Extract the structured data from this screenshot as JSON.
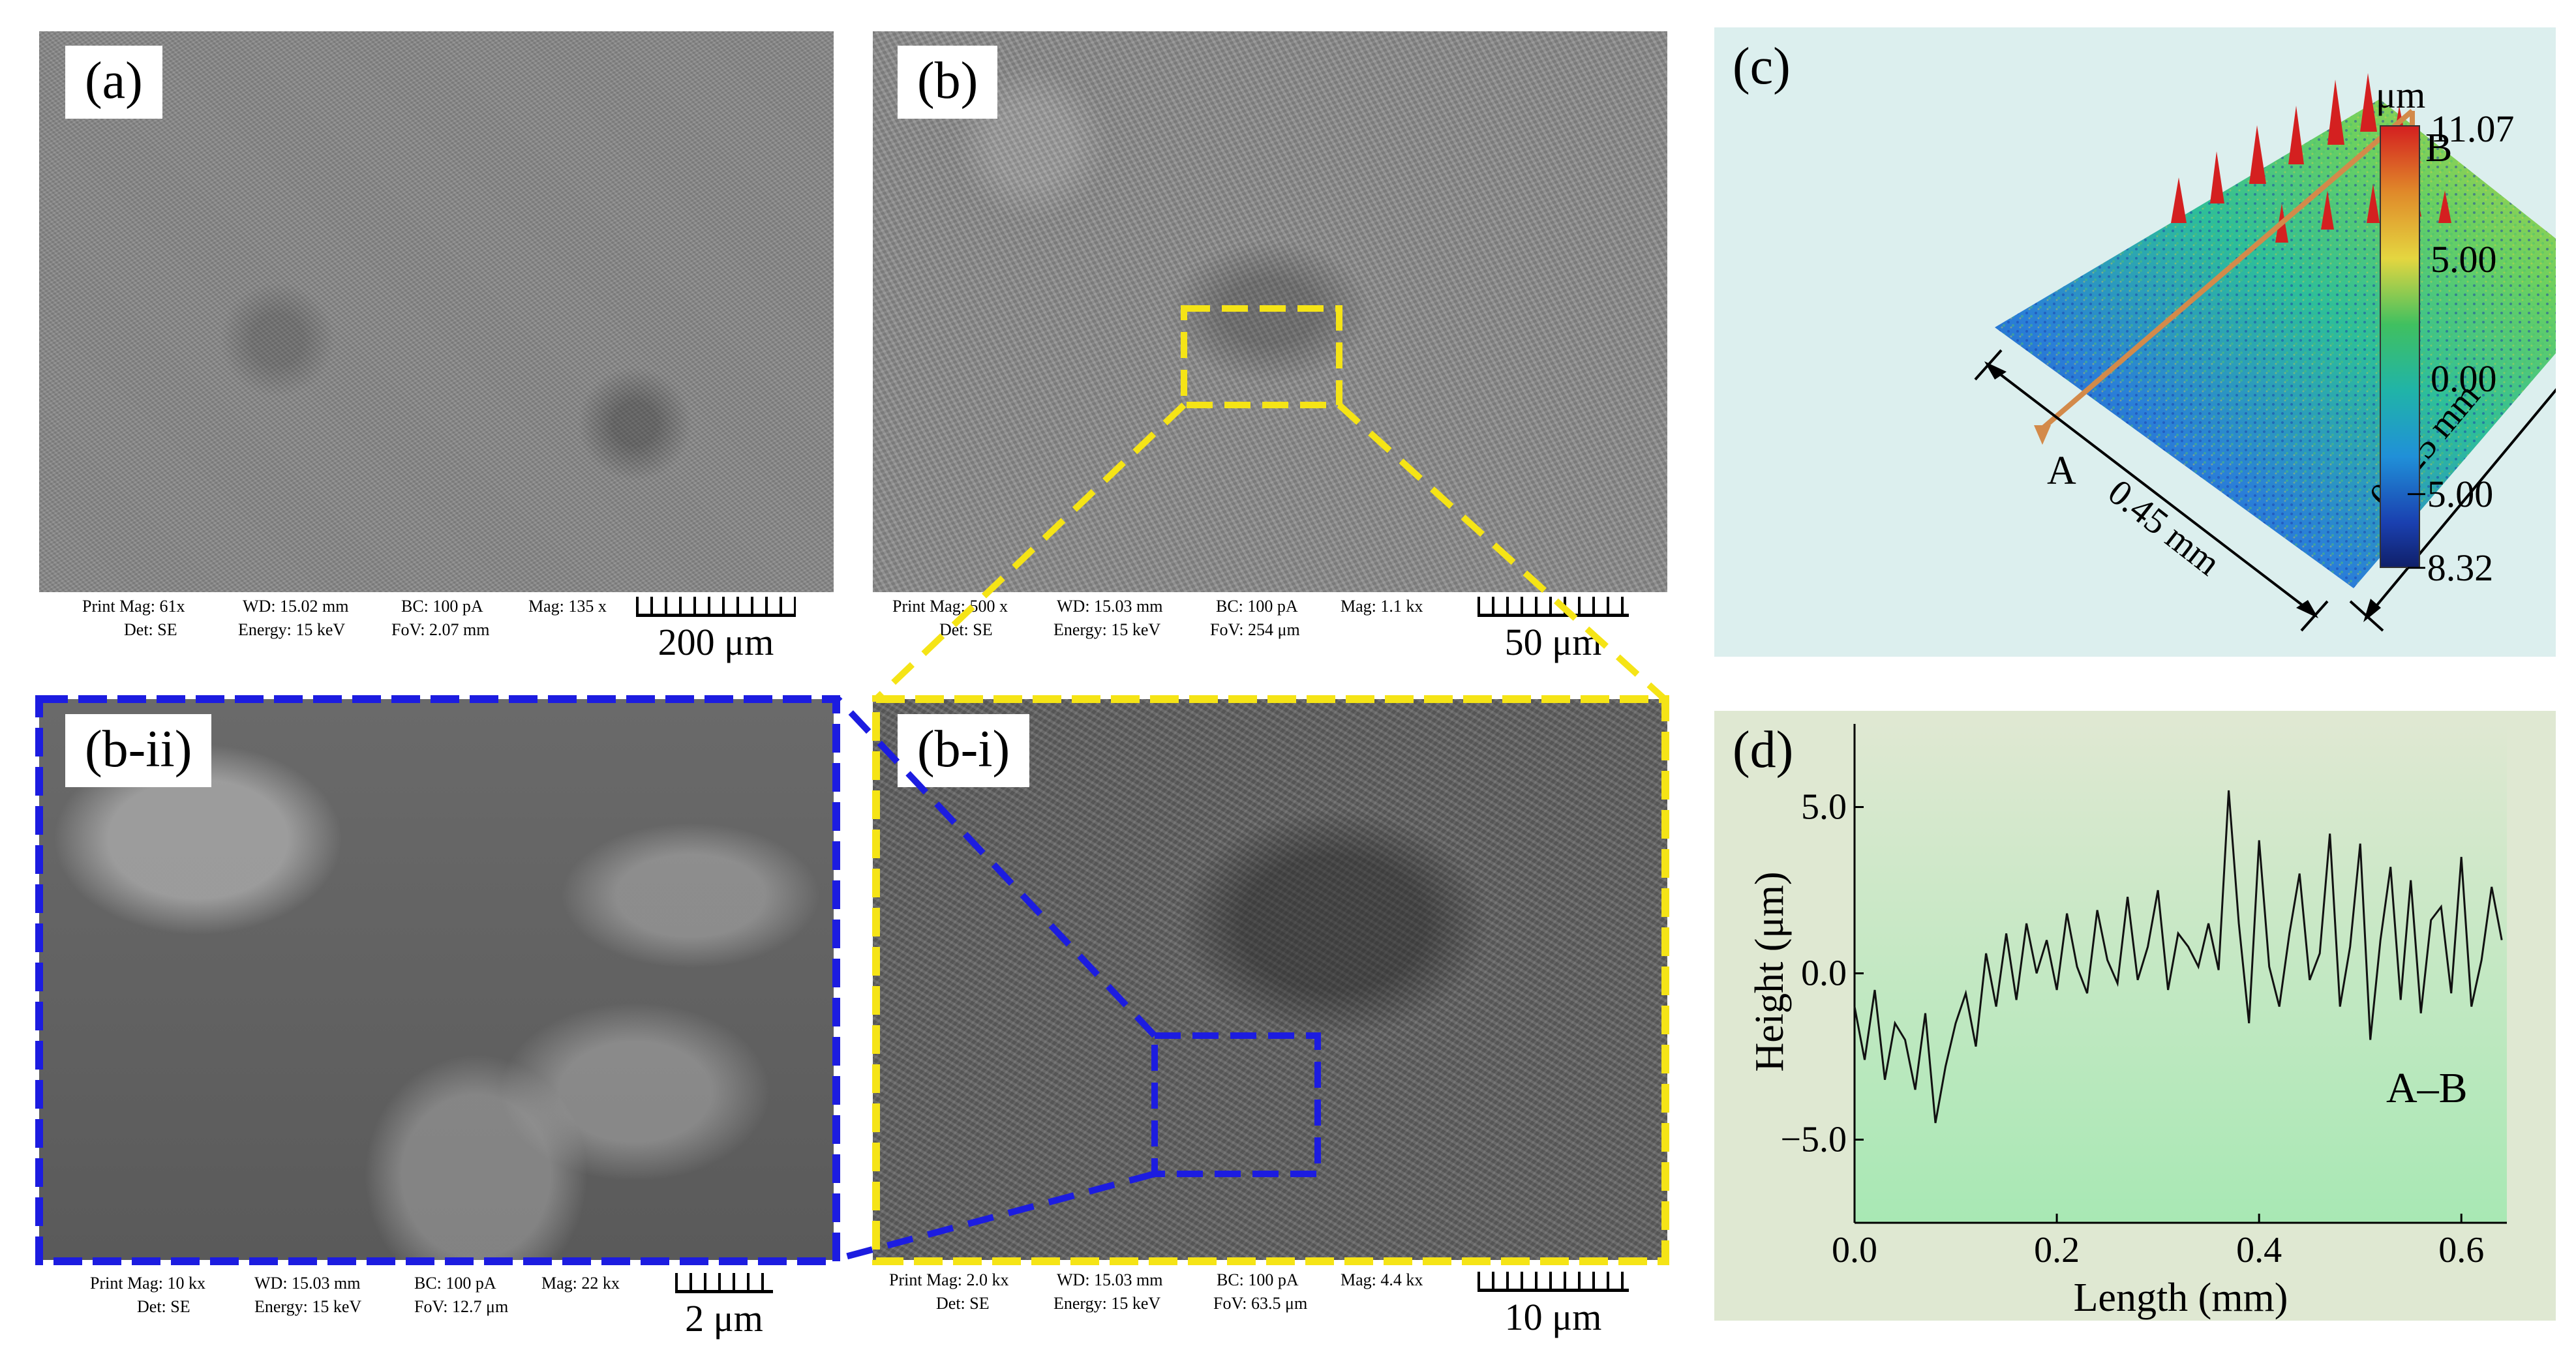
{
  "panels": {
    "a": {
      "label": "(a)",
      "meta": {
        "print_mag": "Print Mag: 61x",
        "wd": "WD: 15.02 mm",
        "bc": "BC: 100 pA",
        "mag": "Mag: 135 x",
        "det": "Det: SE",
        "energy": "Energy: 15 keV",
        "fov": "FoV: 2.07 mm"
      },
      "scale": "200 μm"
    },
    "b": {
      "label": "(b)",
      "meta": {
        "print_mag": "Print Mag: 500 x",
        "wd": "WD: 15.03 mm",
        "bc": "BC: 100 pA",
        "mag": "Mag: 1.1 kx",
        "det": "Det: SE",
        "energy": "Energy: 15 keV",
        "fov": "FoV: 254 μm"
      },
      "scale": "50 μm"
    },
    "bii": {
      "label": "(b-ii)",
      "meta": {
        "print_mag": "Print Mag: 10 kx",
        "wd": "WD: 15.03 mm",
        "bc": "BC: 100 pA",
        "mag": "Mag: 22 kx",
        "det": "Det: SE",
        "energy": "Energy: 15 keV",
        "fov": "FoV: 12.7 μm"
      },
      "scale": "2 μm"
    },
    "bi": {
      "label": "(b-i)",
      "meta": {
        "print_mag": "Print Mag: 2.0 kx",
        "wd": "WD: 15.03 mm",
        "bc": "BC: 100 pA",
        "mag": "Mag: 4.4 kx",
        "det": "Det: SE",
        "energy": "Energy: 15 keV",
        "fov": "FoV: 63.5 μm"
      },
      "scale": "10 μm"
    },
    "c": {
      "label": "(c)",
      "unit": "μm",
      "colorbar_ticks": [
        "11.07",
        "5.00",
        "0.00",
        "−5.00",
        "−8.32"
      ],
      "colorbar_values": [
        11.07,
        5.0,
        0.0,
        -5.0,
        -8.32
      ],
      "colorbar_colors": [
        "#d42020",
        "#e0a030",
        "#e8e040",
        "#40c060",
        "#20b0a0",
        "#2090d8",
        "#1a40b0",
        "#10206a"
      ],
      "dim_width": "0.45 mm",
      "dim_length": "0.625 mm",
      "point_a": "A",
      "point_b": "B",
      "background": "#dcefee"
    },
    "d": {
      "label": "(d)",
      "profile_label": "A–B",
      "background_top": "#dfe8d2",
      "background_bottom": "#a8e8b4"
    }
  },
  "chart_data": {
    "type": "line",
    "title": "",
    "xlabel": "Length (mm)",
    "ylabel": "Height (μm)",
    "xlim": [
      0.0,
      0.645
    ],
    "ylim": [
      -7.5,
      7.5
    ],
    "xticks": [
      0.0,
      0.2,
      0.4,
      0.6
    ],
    "xtick_labels": [
      "0.0",
      "0.2",
      "0.4",
      "0.6"
    ],
    "yticks": [
      -5.0,
      0.0,
      5.0
    ],
    "ytick_labels": [
      "−5.0",
      "0.0",
      "5.0"
    ],
    "series": [
      {
        "color": "#111111",
        "x": [
          0.0,
          0.01,
          0.02,
          0.03,
          0.04,
          0.05,
          0.06,
          0.07,
          0.08,
          0.09,
          0.1,
          0.11,
          0.12,
          0.13,
          0.14,
          0.15,
          0.16,
          0.17,
          0.18,
          0.19,
          0.2,
          0.21,
          0.22,
          0.23,
          0.24,
          0.25,
          0.26,
          0.27,
          0.28,
          0.29,
          0.3,
          0.31,
          0.32,
          0.33,
          0.34,
          0.35,
          0.36,
          0.37,
          0.38,
          0.39,
          0.4,
          0.41,
          0.42,
          0.43,
          0.44,
          0.45,
          0.46,
          0.47,
          0.48,
          0.49,
          0.5,
          0.51,
          0.52,
          0.53,
          0.54,
          0.55,
          0.56,
          0.57,
          0.58,
          0.59,
          0.6,
          0.61,
          0.62,
          0.63,
          0.64
        ],
        "y": [
          -1.0,
          -2.6,
          -0.5,
          -3.2,
          -1.5,
          -2.0,
          -3.5,
          -1.2,
          -4.5,
          -2.8,
          -1.5,
          -0.6,
          -2.2,
          0.6,
          -1.0,
          1.2,
          -0.8,
          1.5,
          0.0,
          1.0,
          -0.5,
          1.8,
          0.2,
          -0.6,
          1.9,
          0.4,
          -0.3,
          2.3,
          -0.2,
          0.8,
          2.5,
          -0.5,
          1.2,
          0.8,
          0.2,
          1.5,
          0.1,
          5.5,
          1.5,
          -1.5,
          4.0,
          0.2,
          -1.0,
          1.2,
          3.0,
          -0.2,
          0.6,
          4.2,
          -1.0,
          0.8,
          3.9,
          -2.0,
          1.0,
          3.2,
          -0.8,
          2.8,
          -1.2,
          1.6,
          2.0,
          -0.6,
          3.5,
          -1.0,
          0.4,
          2.6,
          1.0
        ]
      }
    ]
  }
}
